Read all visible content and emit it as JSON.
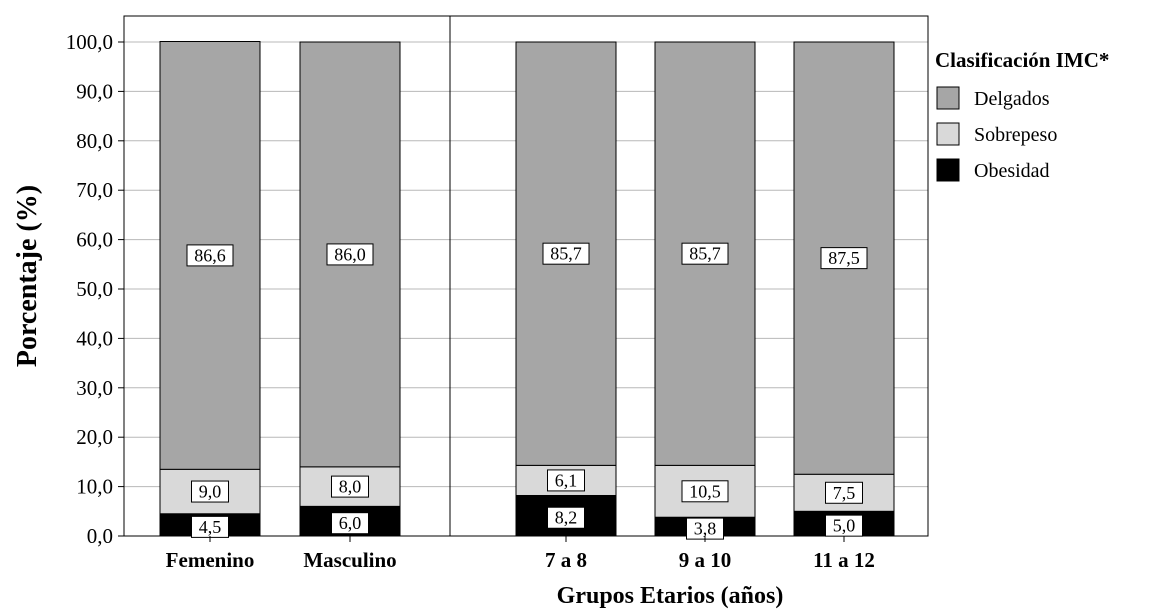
{
  "chart_data": {
    "type": "bar",
    "stacked": true,
    "categories": [
      "Femenino",
      "Masculino",
      "7 a 8",
      "9 a 10",
      "11 a 12"
    ],
    "groups": [
      {
        "categories": [
          "Femenino",
          "Masculino"
        ]
      },
      {
        "categories": [
          "7 a 8",
          "9 a 10",
          "11 a 12"
        ]
      }
    ],
    "series": [
      {
        "name": "Obesidad",
        "color": "#000000",
        "values": [
          4.5,
          6.0,
          8.2,
          3.8,
          5.0
        ],
        "labels": [
          "4,5",
          "6,0",
          "8,2",
          "3,8",
          "5,0"
        ]
      },
      {
        "name": "Sobrepeso",
        "color": "#d9d9d9",
        "values": [
          9.0,
          8.0,
          6.1,
          10.5,
          7.5
        ],
        "labels": [
          "9,0",
          "8,0",
          "6,1",
          "10,5",
          "7,5"
        ]
      },
      {
        "name": "Delgados",
        "color": "#a6a6a6",
        "values": [
          86.6,
          86.0,
          85.7,
          85.7,
          87.5
        ],
        "labels": [
          "86,6",
          "86,0",
          "85,7",
          "85,7",
          "87,5"
        ]
      }
    ],
    "xlabel": "Grupos Etarios (años)",
    "ylabel": "Porcentaje (%)",
    "ylim": [
      0,
      100
    ],
    "yticks": [
      "0,0",
      "10,0",
      "20,0",
      "30,0",
      "40,0",
      "50,0",
      "60,0",
      "70,0",
      "80,0",
      "90,0",
      "100,0"
    ],
    "grid": true,
    "legend": {
      "title": "Clasificación IMC*",
      "position": "right",
      "order": [
        "Delgados",
        "Sobrepeso",
        "Obesidad"
      ]
    }
  }
}
